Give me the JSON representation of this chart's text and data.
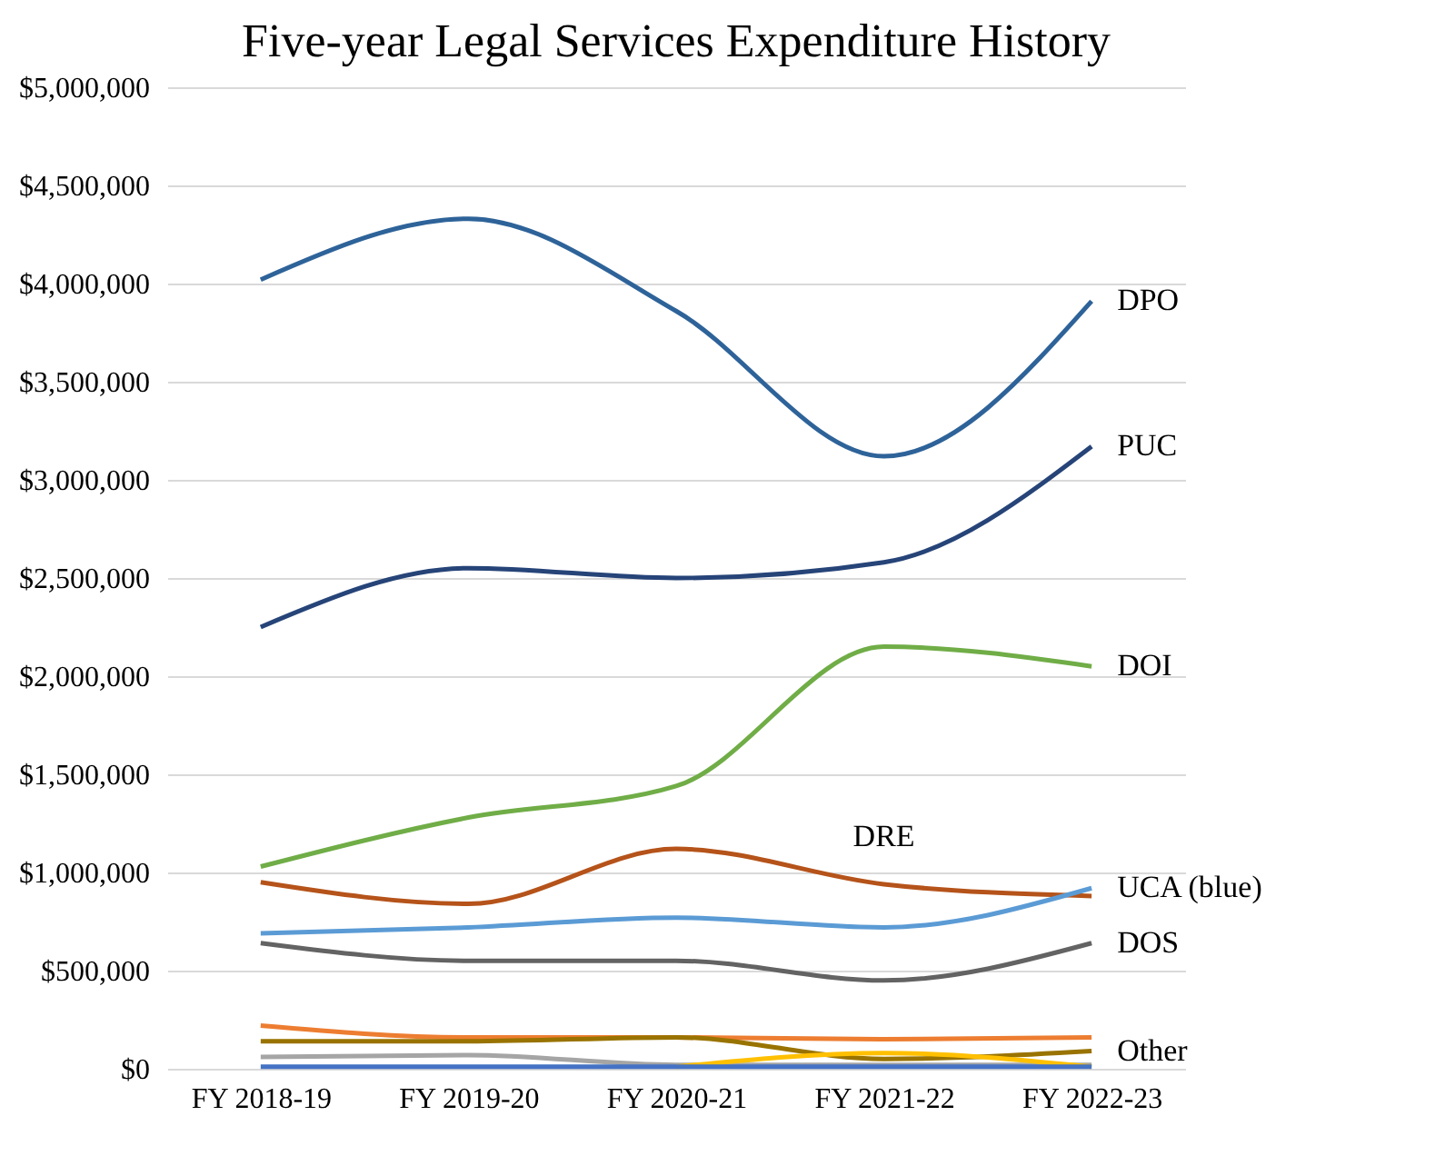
{
  "chart_data": {
    "type": "line",
    "title": "Five-year Legal Services Expenditure History",
    "categories": [
      "FY 2018-19",
      "FY 2019-20",
      "FY 2020-21",
      "FY 2021-22",
      "FY 2022-23"
    ],
    "series": [
      {
        "name": "DPO",
        "color": "#2e6399",
        "values": [
          4020000,
          4330000,
          3860000,
          3120000,
          3910000
        ]
      },
      {
        "name": "PUC",
        "color": "#264478",
        "values": [
          2250000,
          2550000,
          2500000,
          2580000,
          3170000
        ]
      },
      {
        "name": "DOI",
        "color": "#70ad47",
        "values": [
          1030000,
          1280000,
          1440000,
          2150000,
          2050000
        ]
      },
      {
        "color": "#b5531a",
        "values": [
          950000,
          840000,
          1120000,
          940000,
          880000
        ]
      },
      {
        "name": "UCA (blue)",
        "color": "#5b9bd5",
        "values": [
          690000,
          720000,
          770000,
          720000,
          920000
        ]
      },
      {
        "name": "DOS",
        "color": "#636363",
        "values": [
          640000,
          550000,
          550000,
          450000,
          640000
        ]
      },
      {
        "color": "#ed7d31",
        "values": [
          220000,
          160000,
          160000,
          150000,
          160000
        ]
      },
      {
        "color": "#997300",
        "values": [
          140000,
          140000,
          160000,
          50000,
          90000
        ]
      },
      {
        "color": "#a5a5a5",
        "values": [
          60000,
          70000,
          20000,
          20000,
          20000
        ]
      },
      {
        "color": "#ffc000",
        "values": [
          null,
          null,
          10000,
          80000,
          10000
        ]
      },
      {
        "color": "#4472c4",
        "values": [
          10000,
          10000,
          10000,
          10000,
          10000
        ]
      }
    ],
    "annotations": [
      {
        "text": "DRE",
        "x": "FY 2021-22",
        "y": 940000
      },
      {
        "text": "Other",
        "x": "FY 2022-23",
        "y": 90000
      }
    ],
    "ylim": [
      0,
      5000000
    ],
    "yticks": [
      {
        "value": 0,
        "label": "$0"
      },
      {
        "value": 500000,
        "label": "$500,000"
      },
      {
        "value": 1000000,
        "label": "$1,000,000"
      },
      {
        "value": 1500000,
        "label": "$1,500,000"
      },
      {
        "value": 2000000,
        "label": "$2,000,000"
      },
      {
        "value": 2500000,
        "label": "$2,500,000"
      },
      {
        "value": 3000000,
        "label": "$3,000,000"
      },
      {
        "value": 3500000,
        "label": "$3,500,000"
      },
      {
        "value": 4000000,
        "label": "$4,000,000"
      },
      {
        "value": 4500000,
        "label": "$4,500,000"
      },
      {
        "value": 5000000,
        "label": "$5,000,000"
      }
    ],
    "grid": "y"
  }
}
